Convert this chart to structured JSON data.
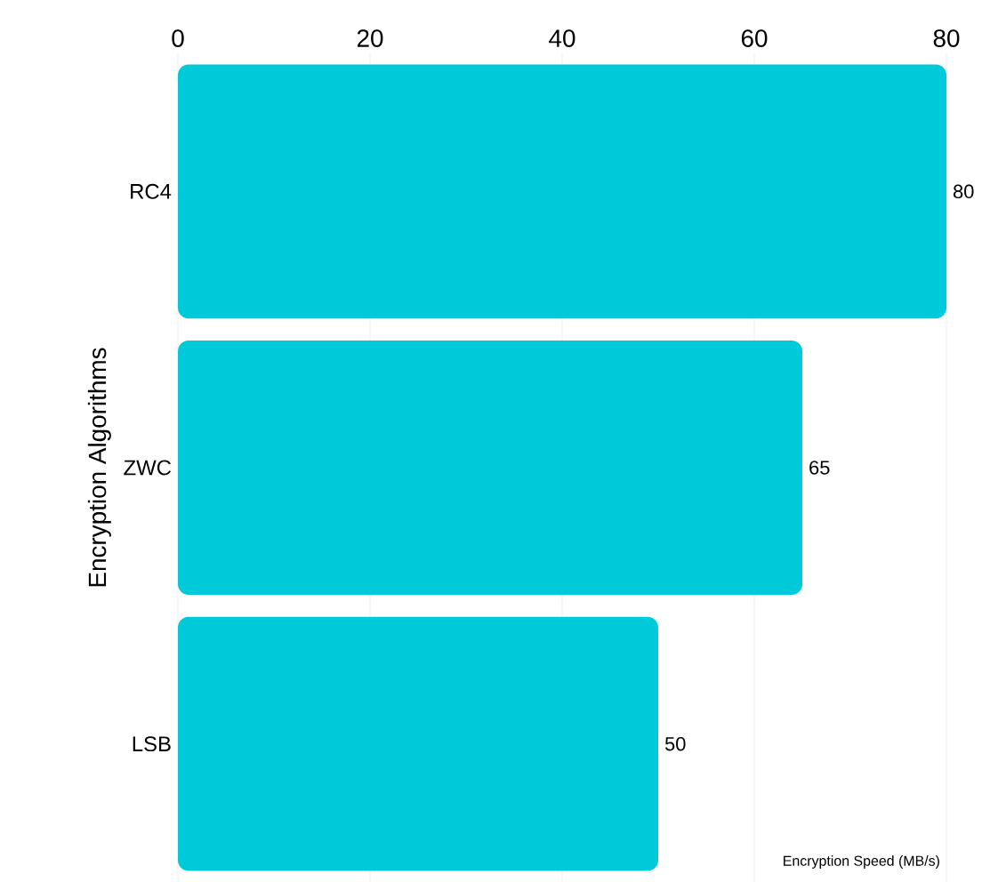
{
  "chart_data": {
    "type": "bar",
    "orientation": "horizontal",
    "ylabel": "Encryption Algorithms",
    "xlabel": "Encryption Speed (MB/s)",
    "categories": [
      "RC4",
      "ZWC",
      "LSB"
    ],
    "values": [
      80,
      65,
      50
    ],
    "color": "#00c9d9",
    "xlim": [
      0,
      80
    ],
    "xticks": [
      0,
      20,
      40,
      60,
      80
    ],
    "grid": "x",
    "data_labels": true
  }
}
